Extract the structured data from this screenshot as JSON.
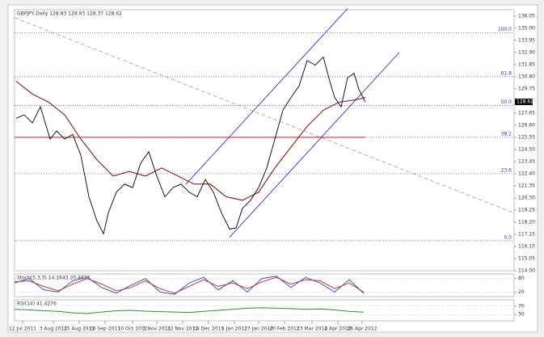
{
  "chart_data": [
    {
      "type": "line",
      "title": "GBPJPY,Daily 128.83 128.93 128.37 128.62",
      "last_price": 128.62,
      "xlim": [
        0,
        309
      ],
      "ylim": [
        114.0,
        136.6
      ],
      "yticks": [
        {
          "value": 136.05,
          "label": "136.05"
        },
        {
          "value": 135.0,
          "label": "135.00"
        },
        {
          "value": 133.95,
          "label": "133.95"
        },
        {
          "value": 132.9,
          "label": "132.90"
        },
        {
          "value": 131.85,
          "label": "131.85"
        },
        {
          "value": 130.8,
          "label": "130.80"
        },
        {
          "value": 129.75,
          "label": "129.75"
        },
        {
          "value": 127.65,
          "label": "127.65"
        },
        {
          "value": 126.6,
          "label": "126.60"
        },
        {
          "value": 125.55,
          "label": "125.55"
        },
        {
          "value": 124.5,
          "label": "124.50"
        },
        {
          "value": 123.45,
          "label": "123.45"
        },
        {
          "value": 122.4,
          "label": "122.40"
        },
        {
          "value": 121.35,
          "label": "121.35"
        },
        {
          "value": 120.3,
          "label": "120.30"
        },
        {
          "value": 119.25,
          "label": "119.25"
        },
        {
          "value": 118.2,
          "label": "118.20"
        },
        {
          "value": 117.15,
          "label": "117.15"
        },
        {
          "value": 116.1,
          "label": "116.10"
        },
        {
          "value": 115.05,
          "label": "115.05"
        },
        {
          "value": 114.0,
          "label": "114.00"
        }
      ],
      "xticks": [
        {
          "value": 5,
          "label": "12 Jul 2011"
        },
        {
          "value": 24,
          "label": "3 Aug 2011"
        },
        {
          "value": 40,
          "label": "25 Aug 2011"
        },
        {
          "value": 56,
          "label": "16 Sep 2011"
        },
        {
          "value": 73,
          "label": "10 Oct 2011"
        },
        {
          "value": 88,
          "label": "1 Nov 2011"
        },
        {
          "value": 104,
          "label": "22 Nov 2011"
        },
        {
          "value": 120,
          "label": "14 Dec 2011"
        },
        {
          "value": 136,
          "label": "5 Jan 2012"
        },
        {
          "value": 151,
          "label": "27 Jan 2012"
        },
        {
          "value": 167,
          "label": "20 Feb 2012"
        },
        {
          "value": 184,
          "label": "13 Mar 2012"
        },
        {
          "value": 200,
          "label": "4 Apr 2012"
        },
        {
          "value": 215,
          "label": "26 Apr 2012"
        }
      ],
      "levels": [
        {
          "value": 116.6,
          "label": "0.0"
        },
        {
          "value": 122.4,
          "label": "23.6"
        },
        {
          "value": 125.55,
          "label": "38.2"
        },
        {
          "value": 128.3,
          "label": "50.0"
        },
        {
          "value": 130.8,
          "label": "61.8"
        },
        {
          "value": 134.6,
          "label": "100.0"
        }
      ],
      "level_color": "#3333cc",
      "trendlines": [
        {
          "x": [
            0,
            309
          ],
          "y": [
            135.9,
            119.0
          ],
          "color": "#a8a890",
          "dashed": true
        },
        {
          "x": [
            106,
            206
          ],
          "y": [
            121.5,
            136.7
          ],
          "color": "#3333cc",
          "dashed": false
        },
        {
          "x": [
            133,
            238
          ],
          "y": [
            116.9,
            132.9
          ],
          "color": "#3333cc",
          "dashed": false
        },
        {
          "x": [
            0,
            217
          ],
          "y": [
            125.55,
            125.55
          ],
          "color": "#cc0000",
          "dashed": false
        }
      ],
      "series": [
        {
          "name": "GBPJPY",
          "color": "#000000",
          "x": [
            1,
            6,
            11,
            16,
            19,
            22,
            26,
            31,
            36,
            41,
            46,
            51,
            55,
            58,
            63,
            68,
            73,
            78,
            83,
            88,
            93,
            98,
            103,
            108,
            113,
            118,
            123,
            128,
            133,
            137,
            141,
            146,
            151,
            156,
            161,
            166,
            171,
            176,
            181,
            186,
            191,
            195,
            198,
            202,
            206,
            210,
            213,
            217
          ],
          "values": [
            127.2,
            127.5,
            126.8,
            128.2,
            126.8,
            125.4,
            126.1,
            125.4,
            125.8,
            124.0,
            120.4,
            118.3,
            117.2,
            119.0,
            120.8,
            121.5,
            121.2,
            123.3,
            124.3,
            122.2,
            120.4,
            121.2,
            121.5,
            120.8,
            120.4,
            121.9,
            120.8,
            119.0,
            117.6,
            117.7,
            119.4,
            120.1,
            121.2,
            122.9,
            125.4,
            127.9,
            129.0,
            130.0,
            132.2,
            131.8,
            132.5,
            130.4,
            129.0,
            128.2,
            130.7,
            131.1,
            129.7,
            128.6
          ]
        },
        {
          "name": "MA",
          "color": "#8b0000",
          "x": [
            1,
            11,
            21,
            31,
            41,
            51,
            61,
            71,
            81,
            91,
            101,
            111,
            121,
            131,
            141,
            151,
            161,
            171,
            181,
            191,
            201,
            211,
            217
          ],
          "values": [
            130.4,
            129.3,
            128.6,
            127.5,
            125.4,
            123.6,
            122.2,
            122.6,
            122.2,
            122.9,
            122.2,
            121.5,
            121.5,
            120.4,
            120.1,
            120.8,
            122.9,
            124.7,
            126.5,
            127.9,
            128.6,
            128.8,
            129.0
          ]
        }
      ]
    },
    {
      "type": "line",
      "title": "Stoch(5,3,3) 14.1643 20.4873",
      "xlim": [
        0,
        309
      ],
      "ylim": [
        0,
        100
      ],
      "yticks": [
        80,
        20
      ],
      "series": [
        {
          "name": "Main",
          "color": "#3355cc",
          "x": [
            0,
            9,
            18,
            27,
            36,
            45,
            54,
            63,
            72,
            81,
            90,
            99,
            108,
            117,
            126,
            135,
            144,
            153,
            162,
            171,
            180,
            189,
            198,
            207,
            216
          ],
          "values": [
            60,
            80,
            30,
            20,
            70,
            85,
            40,
            15,
            50,
            80,
            20,
            10,
            60,
            85,
            30,
            70,
            20,
            80,
            90,
            40,
            85,
            60,
            20,
            75,
            14
          ]
        },
        {
          "name": "Signal",
          "color": "#cc3333",
          "x": [
            0,
            9,
            18,
            27,
            36,
            45,
            54,
            63,
            72,
            81,
            90,
            99,
            108,
            117,
            126,
            135,
            144,
            153,
            162,
            171,
            180,
            189,
            198,
            207,
            216
          ],
          "values": [
            65,
            70,
            45,
            25,
            55,
            80,
            55,
            25,
            40,
            70,
            35,
            15,
            45,
            75,
            45,
            60,
            35,
            65,
            85,
            55,
            75,
            70,
            35,
            60,
            20
          ]
        }
      ]
    },
    {
      "type": "line",
      "title": "RSI(14) 41.4276",
      "xlim": [
        0,
        309
      ],
      "ylim": [
        0,
        100
      ],
      "yticks": [
        70,
        30
      ],
      "series": [
        {
          "name": "RSI",
          "color": "#2e8b2e",
          "x": [
            0,
            9,
            18,
            27,
            36,
            45,
            54,
            63,
            72,
            81,
            90,
            99,
            108,
            117,
            126,
            135,
            144,
            153,
            162,
            171,
            180,
            189,
            198,
            207,
            216
          ],
          "values": [
            55,
            52,
            48,
            45,
            38,
            35,
            42,
            48,
            50,
            46,
            44,
            42,
            40,
            45,
            50,
            55,
            60,
            62,
            60,
            58,
            55,
            57,
            52,
            45,
            41
          ]
        }
      ]
    }
  ]
}
